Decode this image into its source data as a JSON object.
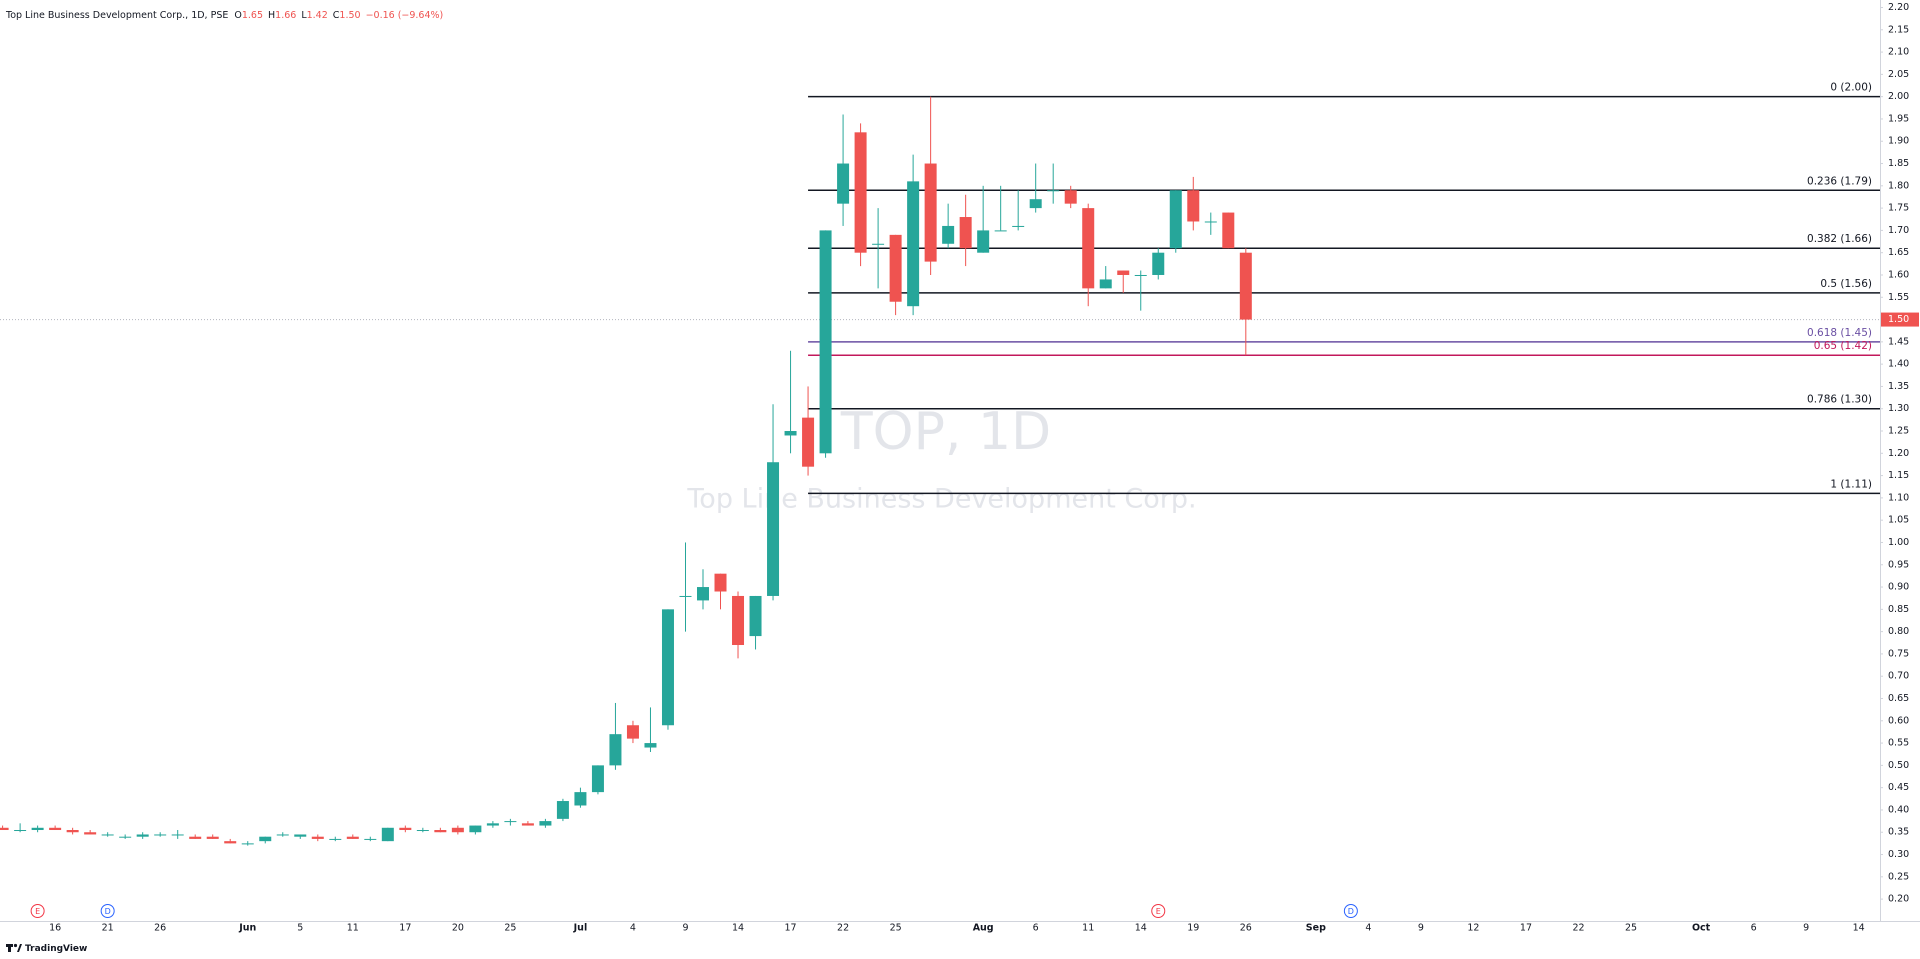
{
  "chart_data": {
    "type": "candlestick",
    "title": "Top Line Business Development Corp., 1D, PSE",
    "header_fields": [
      {
        "key": "O",
        "value": "1.65"
      },
      {
        "key": "H",
        "value": "1.66"
      },
      {
        "key": "L",
        "value": "1.42"
      },
      {
        "key": "C",
        "value": "1.50"
      }
    ],
    "change": "−0.16 (−9.64%)",
    "watermark": "TOP, 1D",
    "watermark_subtitle": "Top Line Business Development Corp.",
    "brand": "TradingView",
    "up_color": "#26a69a",
    "down_color": "#ef5350",
    "grid": false,
    "categories": [
      null,
      null,
      null,
      "16",
      null,
      null,
      "21",
      null,
      null,
      "26",
      null,
      null,
      null,
      null,
      "Jun",
      null,
      null,
      "5",
      null,
      null,
      "11",
      null,
      null,
      "17",
      null,
      null,
      "20",
      null,
      null,
      "25",
      null,
      null,
      null,
      "Jul",
      null,
      null,
      "4",
      null,
      null,
      "9",
      null,
      null,
      "14",
      null,
      null,
      "17",
      null,
      null,
      "22",
      null,
      null,
      "25",
      null,
      null,
      null,
      null,
      "Aug",
      null,
      null,
      "6",
      null,
      null,
      "11",
      null,
      null,
      "14",
      null,
      null,
      "19",
      null,
      null,
      "26",
      null,
      null,
      null,
      "Sep",
      null,
      null,
      "4",
      null,
      null,
      "9",
      null,
      null,
      "12",
      null,
      null,
      "17",
      null,
      null,
      "22",
      null,
      null,
      "25",
      null,
      null,
      null,
      "Oct",
      null,
      null,
      "6",
      null,
      null,
      "9",
      null,
      null,
      "14"
    ],
    "open": [
      0.36,
      0.355,
      0.355,
      0.36,
      0.355,
      0.35,
      0.345,
      0.34,
      0.34,
      0.345,
      0.345,
      0.34,
      0.34,
      0.33,
      0.325,
      0.33,
      0.345,
      0.34,
      0.34,
      0.335,
      0.34,
      0.335,
      0.33,
      0.36,
      0.355,
      0.355,
      0.36,
      0.35,
      0.365,
      0.375,
      0.37,
      0.365,
      0.38,
      0.41,
      0.44,
      0.5,
      0.59,
      0.54,
      0.59,
      0.88,
      0.87,
      0.93,
      0.88,
      0.79,
      0.88,
      1.24,
      1.28,
      1.2,
      1.76,
      1.92,
      1.67,
      1.69,
      1.53,
      1.85,
      1.67,
      1.73,
      1.65,
      1.7,
      1.71,
      1.75,
      1.79,
      1.79,
      1.75,
      1.57,
      1.61,
      1.6,
      1.6,
      1.66,
      1.79,
      1.72,
      1.74,
      1.65,
      null,
      null,
      null,
      null,
      null,
      null,
      null,
      null,
      null,
      null,
      null,
      null,
      null,
      null,
      null,
      null,
      null,
      null,
      null,
      null,
      null,
      null,
      null,
      null,
      null,
      null,
      null,
      null,
      null,
      null,
      null,
      null,
      null,
      null,
      null
    ],
    "high": [
      0.365,
      0.37,
      0.365,
      0.365,
      0.36,
      0.355,
      0.35,
      0.345,
      0.35,
      0.35,
      0.355,
      0.345,
      0.345,
      0.335,
      0.33,
      0.34,
      0.35,
      0.345,
      0.345,
      0.34,
      0.345,
      0.34,
      0.36,
      0.365,
      0.36,
      0.36,
      0.365,
      0.365,
      0.375,
      0.38,
      0.375,
      0.38,
      0.425,
      0.45,
      0.5,
      0.64,
      0.6,
      0.63,
      0.85,
      1.0,
      0.94,
      0.93,
      0.89,
      0.88,
      1.31,
      1.43,
      1.35,
      1.7,
      1.96,
      1.94,
      1.75,
      1.69,
      1.87,
      2.0,
      1.76,
      1.78,
      1.8,
      1.8,
      1.79,
      1.85,
      1.85,
      1.8,
      1.76,
      1.62,
      1.61,
      1.61,
      1.66,
      1.79,
      1.82,
      1.74,
      1.74,
      1.66,
      null,
      null,
      null,
      null,
      null,
      null,
      null,
      null,
      null,
      null,
      null,
      null,
      null,
      null,
      null,
      null,
      null,
      null,
      null,
      null,
      null,
      null,
      null,
      null,
      null,
      null,
      null,
      null,
      null,
      null,
      null,
      null,
      null,
      null,
      null
    ],
    "low": [
      0.355,
      0.35,
      0.35,
      0.355,
      0.345,
      0.345,
      0.34,
      0.335,
      0.335,
      0.34,
      0.335,
      0.335,
      0.335,
      0.325,
      0.32,
      0.325,
      0.34,
      0.335,
      0.33,
      0.33,
      0.335,
      0.33,
      0.33,
      0.35,
      0.35,
      0.35,
      0.345,
      0.345,
      0.36,
      0.365,
      0.365,
      0.36,
      0.375,
      0.405,
      0.435,
      0.49,
      0.55,
      0.53,
      0.58,
      0.8,
      0.85,
      0.85,
      0.74,
      0.76,
      0.87,
      1.2,
      1.15,
      1.19,
      1.71,
      1.62,
      1.57,
      1.51,
      1.51,
      1.6,
      1.66,
      1.62,
      1.65,
      1.7,
      1.7,
      1.74,
      1.76,
      1.75,
      1.53,
      1.57,
      1.56,
      1.52,
      1.59,
      1.65,
      1.7,
      1.69,
      1.66,
      1.42,
      null,
      null,
      null,
      null,
      null,
      null,
      null,
      null,
      null,
      null,
      null,
      null,
      null,
      null,
      null,
      null,
      null,
      null,
      null,
      null,
      null,
      null,
      null,
      null,
      null,
      null,
      null,
      null,
      null,
      null,
      null,
      null,
      null,
      null,
      null
    ],
    "close": [
      0.355,
      0.355,
      0.36,
      0.355,
      0.35,
      0.345,
      0.345,
      0.34,
      0.345,
      0.345,
      0.345,
      0.335,
      0.335,
      0.325,
      0.325,
      0.34,
      0.345,
      0.345,
      0.335,
      0.335,
      0.335,
      0.335,
      0.36,
      0.355,
      0.355,
      0.35,
      0.35,
      0.365,
      0.37,
      0.375,
      0.365,
      0.375,
      0.42,
      0.44,
      0.5,
      0.57,
      0.56,
      0.55,
      0.85,
      0.88,
      0.9,
      0.89,
      0.77,
      0.88,
      1.18,
      1.25,
      1.17,
      1.7,
      1.85,
      1.65,
      1.67,
      1.54,
      1.81,
      1.63,
      1.71,
      1.66,
      1.7,
      1.7,
      1.71,
      1.77,
      1.79,
      1.76,
      1.57,
      1.59,
      1.6,
      1.6,
      1.65,
      1.79,
      1.72,
      1.72,
      1.66,
      1.5,
      null,
      null,
      null,
      null,
      null,
      null,
      null,
      null,
      null,
      null,
      null,
      null,
      null,
      null,
      null,
      null,
      null,
      null,
      null,
      null,
      null,
      null,
      null,
      null,
      null,
      null,
      null,
      null,
      null,
      null,
      null,
      null,
      null,
      null,
      null
    ],
    "events": [
      null,
      null,
      "E",
      null,
      null,
      null,
      "D",
      null,
      null,
      null,
      null,
      null,
      null,
      null,
      null,
      null,
      null,
      null,
      null,
      null,
      null,
      null,
      null,
      null,
      null,
      null,
      null,
      null,
      null,
      null,
      null,
      null,
      null,
      null,
      null,
      null,
      null,
      null,
      null,
      null,
      null,
      null,
      null,
      null,
      null,
      null,
      null,
      null,
      null,
      null,
      null,
      null,
      null,
      null,
      null,
      null,
      null,
      null,
      null,
      null,
      null,
      null,
      null,
      null,
      null,
      null,
      "E",
      null,
      null,
      null,
      null,
      null,
      null,
      null,
      null,
      null,
      null,
      "D",
      null,
      null,
      null,
      null,
      null,
      null,
      null,
      null,
      null,
      null,
      null,
      null,
      null,
      null,
      null,
      null,
      null,
      null,
      null,
      null,
      null,
      null,
      null,
      null,
      null,
      null,
      null,
      null,
      null
    ],
    "event_colors": {
      "E": "#f23645",
      "D": "#2962ff"
    },
    "fib_levels": [
      {
        "value": 2.0,
        "label": "0 (2.00)",
        "color": "#131722"
      },
      {
        "value": 1.79,
        "label": "0.236 (1.79)",
        "color": "#131722"
      },
      {
        "value": 1.66,
        "label": "0.382 (1.66)",
        "color": "#131722"
      },
      {
        "value": 1.56,
        "label": "0.5 (1.56)",
        "color": "#131722"
      },
      {
        "value": 1.45,
        "label": "0.618 (1.45)",
        "color": "#6a4fa3"
      },
      {
        "value": 1.42,
        "label": "0.65 (1.42)",
        "color": "#c2185b"
      },
      {
        "value": 1.3,
        "label": "0.786 (1.30)",
        "color": "#131722"
      },
      {
        "value": 1.11,
        "label": "1 (1.11)",
        "color": "#131722"
      }
    ],
    "last_price": {
      "value": 1.5,
      "label": "1.50"
    },
    "ylim": [
      0.15,
      2.2
    ],
    "yticks": [
      {
        "value": 0.2,
        "label": "0.20"
      },
      {
        "value": 0.25,
        "label": "0.25"
      },
      {
        "value": 0.3,
        "label": "0.30"
      },
      {
        "value": 0.35,
        "label": "0.35"
      },
      {
        "value": 0.4,
        "label": "0.40"
      },
      {
        "value": 0.45,
        "label": "0.45"
      },
      {
        "value": 0.5,
        "label": "0.50"
      },
      {
        "value": 0.55,
        "label": "0.55"
      },
      {
        "value": 0.6,
        "label": "0.60"
      },
      {
        "value": 0.65,
        "label": "0.65"
      },
      {
        "value": 0.7,
        "label": "0.70"
      },
      {
        "value": 0.75,
        "label": "0.75"
      },
      {
        "value": 0.8,
        "label": "0.80"
      },
      {
        "value": 0.85,
        "label": "0.85"
      },
      {
        "value": 0.9,
        "label": "0.90"
      },
      {
        "value": 0.95,
        "label": "0.95"
      },
      {
        "value": 1.0,
        "label": "1.00"
      },
      {
        "value": 1.05,
        "label": "1.05"
      },
      {
        "value": 1.1,
        "label": "1.10"
      },
      {
        "value": 1.15,
        "label": "1.15"
      },
      {
        "value": 1.2,
        "label": "1.20"
      },
      {
        "value": 1.25,
        "label": "1.25"
      },
      {
        "value": 1.3,
        "label": "1.30"
      },
      {
        "value": 1.35,
        "label": "1.35"
      },
      {
        "value": 1.4,
        "label": "1.40"
      },
      {
        "value": 1.45,
        "label": "1.45"
      },
      {
        "value": 1.55,
        "label": "1.55"
      },
      {
        "value": 1.6,
        "label": "1.60"
      },
      {
        "value": 1.65,
        "label": "1.65"
      },
      {
        "value": 1.7,
        "label": "1.70"
      },
      {
        "value": 1.75,
        "label": "1.75"
      },
      {
        "value": 1.8,
        "label": "1.80"
      },
      {
        "value": 1.85,
        "label": "1.85"
      },
      {
        "value": 1.9,
        "label": "1.90"
      },
      {
        "value": 1.95,
        "label": "1.95"
      },
      {
        "value": 2.0,
        "label": "2.00"
      },
      {
        "value": 2.05,
        "label": "2.05"
      },
      {
        "value": 2.1,
        "label": "2.10"
      },
      {
        "value": 2.15,
        "label": "2.15"
      },
      {
        "value": 2.2,
        "label": "2.20"
      }
    ]
  }
}
